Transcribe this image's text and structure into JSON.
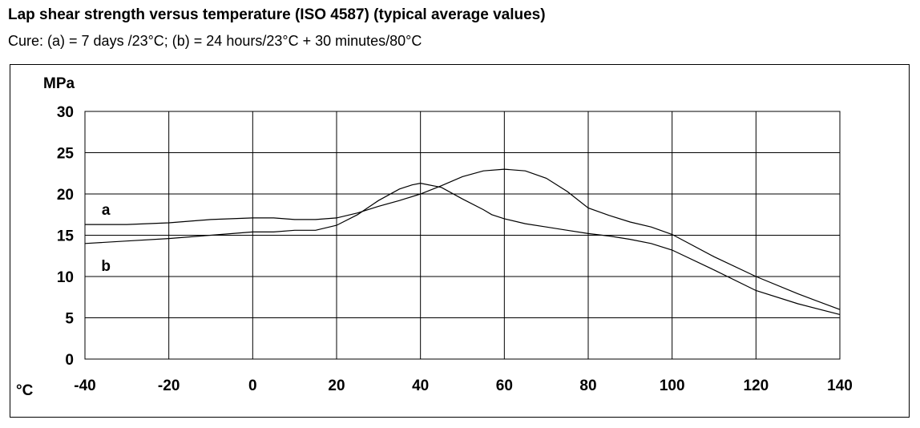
{
  "title": "Lap shear strength versus temperature (ISO 4587) (typical average values)",
  "subtitle": "Cure: (a) = 7 days /23°C; (b) = 24 hours/23°C + 30 minutes/80°C",
  "chart_data": {
    "type": "line",
    "ylabel": "MPa",
    "xlabel": "°C",
    "xlim": [
      -40,
      140
    ],
    "ylim": [
      0,
      30
    ],
    "x_ticks": [
      -40,
      -20,
      0,
      20,
      40,
      60,
      80,
      100,
      120,
      140
    ],
    "y_ticks": [
      0,
      5,
      10,
      15,
      20,
      25,
      30
    ],
    "grid": true,
    "series": [
      {
        "name": "a",
        "x": [
          -40,
          -30,
          -20,
          -10,
          0,
          5,
          10,
          15,
          20,
          25,
          30,
          35,
          40,
          45,
          50,
          55,
          60,
          65,
          70,
          75,
          80,
          85,
          90,
          95,
          100,
          110,
          120,
          130,
          140
        ],
        "y": [
          16.3,
          16.3,
          16.5,
          16.9,
          17.1,
          17.1,
          16.9,
          16.9,
          17.1,
          17.7,
          18.5,
          19.2,
          20.0,
          21.0,
          22.1,
          22.8,
          23.0,
          22.8,
          21.9,
          20.3,
          18.3,
          17.4,
          16.6,
          16.0,
          15.1,
          12.4,
          10.0,
          7.9,
          6.0
        ]
      },
      {
        "name": "b",
        "x": [
          -40,
          -30,
          -20,
          -10,
          0,
          5,
          10,
          15,
          20,
          25,
          30,
          35,
          38,
          40,
          45,
          50,
          55,
          57,
          60,
          65,
          70,
          75,
          80,
          85,
          90,
          95,
          100,
          110,
          120,
          130,
          140
        ],
        "y": [
          14.0,
          14.3,
          14.6,
          15.0,
          15.4,
          15.4,
          15.6,
          15.6,
          16.2,
          17.5,
          19.2,
          20.6,
          21.1,
          21.3,
          20.8,
          19.4,
          18.1,
          17.5,
          17.0,
          16.4,
          16.0,
          15.6,
          15.2,
          14.9,
          14.5,
          14.0,
          13.2,
          10.8,
          8.3,
          6.7,
          5.4
        ]
      }
    ]
  }
}
